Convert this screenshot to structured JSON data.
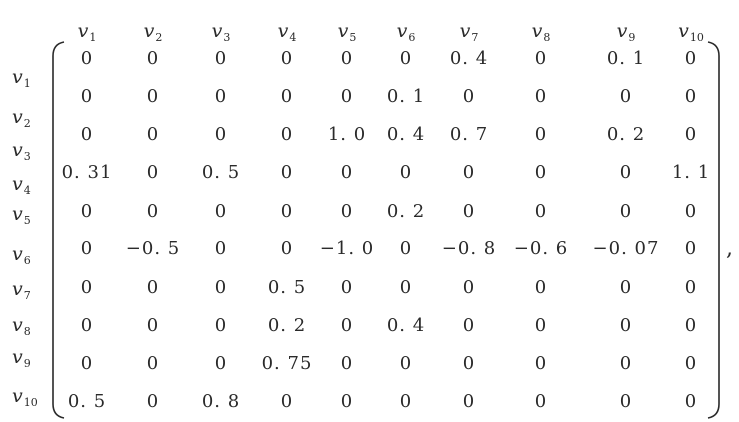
{
  "column_labels": [
    {
      "base": "v",
      "sub": "1"
    },
    {
      "base": "v",
      "sub": "2"
    },
    {
      "base": "v",
      "sub": "3"
    },
    {
      "base": "v",
      "sub": "4"
    },
    {
      "base": "v",
      "sub": "5"
    },
    {
      "base": "v",
      "sub": "6"
    },
    {
      "base": "v",
      "sub": "7"
    },
    {
      "base": "v",
      "sub": "8"
    },
    {
      "base": "v",
      "sub": "9"
    },
    {
      "base": "v",
      "sub": "10"
    }
  ],
  "row_labels": [
    {
      "base": "v",
      "sub": "1"
    },
    {
      "base": "v",
      "sub": "2"
    },
    {
      "base": "v",
      "sub": "3"
    },
    {
      "base": "v",
      "sub": "4"
    },
    {
      "base": "v",
      "sub": "5"
    },
    {
      "base": "v",
      "sub": "6"
    },
    {
      "base": "v",
      "sub": "7"
    },
    {
      "base": "v",
      "sub": "8"
    },
    {
      "base": "v",
      "sub": "9"
    },
    {
      "base": "v",
      "sub": "10"
    }
  ],
  "matrix": [
    [
      "0",
      "0",
      "0",
      "0",
      "0",
      "0",
      "0. 4",
      "0",
      "0. 1",
      "0"
    ],
    [
      "0",
      "0",
      "0",
      "0",
      "0",
      "0. 1",
      "0",
      "0",
      "0",
      "0"
    ],
    [
      "0",
      "0",
      "0",
      "0",
      "1. 0",
      "0. 4",
      "0. 7",
      "0",
      "0. 2",
      "0"
    ],
    [
      "0. 31",
      "0",
      "0. 5",
      "0",
      "0",
      "0",
      "0",
      "0",
      "0",
      "1. 1"
    ],
    [
      "0",
      "0",
      "0",
      "0",
      "0",
      "0. 2",
      "0",
      "0",
      "0",
      "0"
    ],
    [
      "0",
      "−0. 5",
      "0",
      "0",
      "−1. 0",
      "0",
      "−0. 8",
      "−0. 6",
      "−0. 07",
      "0"
    ],
    [
      "0",
      "0",
      "0",
      "0. 5",
      "0",
      "0",
      "0",
      "0",
      "0",
      "0"
    ],
    [
      "0",
      "0",
      "0",
      "0. 2",
      "0",
      "0. 4",
      "0",
      "0",
      "0",
      "0"
    ],
    [
      "0",
      "0",
      "0",
      "0. 75",
      "0",
      "0",
      "0",
      "0",
      "0",
      "0"
    ],
    [
      "0. 5",
      "0",
      "0. 8",
      "0",
      "0",
      "0",
      "0",
      "0",
      "0",
      "0"
    ]
  ],
  "trailing_punctuation": ","
}
